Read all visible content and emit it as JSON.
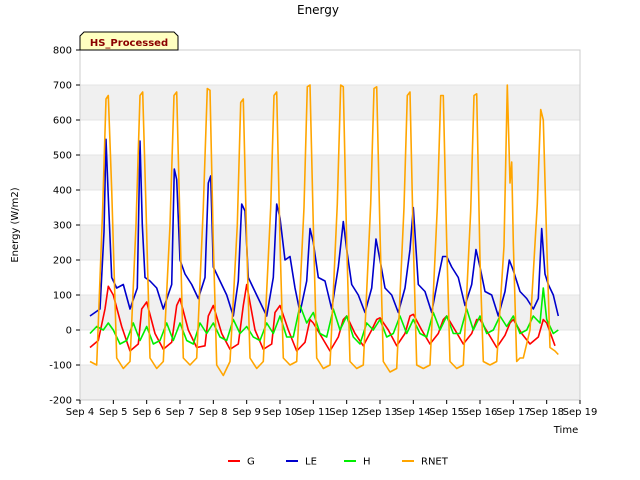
{
  "chart_data": {
    "type": "line",
    "title": "Energy",
    "xlabel": "Time",
    "ylabel": "Energy (W/m2)",
    "badge": "HS_Processed",
    "ylim": [
      -200,
      800
    ],
    "yticks": [
      -200,
      -100,
      0,
      100,
      200,
      300,
      400,
      500,
      600,
      700,
      800
    ],
    "xlim": [
      4,
      19
    ],
    "xticks": [
      4,
      5,
      6,
      7,
      8,
      9,
      10,
      11,
      12,
      13,
      14,
      15,
      16,
      17,
      18,
      19
    ],
    "xtick_labels": [
      "Sep 4",
      "Sep 5",
      "Sep 6",
      "Sep 7",
      "Sep 8",
      "Sep 9",
      "Sep 10",
      "Sep 11",
      "Sep 12",
      "Sep 13",
      "Sep 14",
      "Sep 15",
      "Sep 16",
      "Sep 17",
      "Sep 18",
      "Sep 19"
    ],
    "grid_bands": true,
    "legend_position": "bottom",
    "series": [
      {
        "name": "G",
        "color": "#ff0000",
        "x": [
          4.3,
          4.55,
          4.75,
          4.85,
          5.0,
          5.25,
          5.5,
          5.75,
          5.85,
          6.0,
          6.25,
          6.5,
          6.75,
          6.9,
          7.0,
          7.25,
          7.5,
          7.75,
          7.85,
          8.0,
          8.25,
          8.5,
          8.75,
          8.9,
          9.0,
          9.25,
          9.5,
          9.75,
          9.85,
          10.0,
          10.25,
          10.5,
          10.75,
          10.9,
          11.0,
          11.25,
          11.5,
          11.75,
          11.9,
          12.0,
          12.25,
          12.5,
          12.75,
          12.9,
          13.0,
          13.25,
          13.5,
          13.75,
          13.9,
          14.0,
          14.25,
          14.5,
          14.75,
          14.9,
          15.0,
          15.25,
          15.5,
          15.75,
          15.9,
          16.0,
          16.25,
          16.5,
          16.75,
          16.9,
          17.0,
          17.25,
          17.5,
          17.75,
          17.9,
          18.0,
          18.25
        ],
        "y": [
          -50,
          -30,
          60,
          125,
          100,
          10,
          -60,
          -40,
          60,
          80,
          -10,
          -55,
          -35,
          70,
          90,
          0,
          -50,
          -45,
          40,
          70,
          -10,
          -55,
          -40,
          70,
          130,
          0,
          -55,
          -40,
          50,
          70,
          0,
          -60,
          -35,
          30,
          20,
          -20,
          -60,
          -20,
          30,
          40,
          -10,
          -45,
          0,
          30,
          35,
          0,
          -45,
          -10,
          40,
          45,
          0,
          -40,
          -10,
          30,
          40,
          0,
          -40,
          -10,
          30,
          30,
          -10,
          -50,
          -15,
          20,
          30,
          -10,
          -40,
          -20,
          30,
          20,
          -45
        ]
      },
      {
        "name": "LE",
        "color": "#0000cc",
        "x": [
          4.3,
          4.6,
          4.72,
          4.78,
          4.85,
          4.95,
          5.1,
          5.3,
          5.5,
          5.72,
          5.8,
          5.87,
          5.95,
          6.1,
          6.3,
          6.5,
          6.75,
          6.83,
          6.9,
          7.0,
          7.15,
          7.35,
          7.55,
          7.75,
          7.85,
          7.92,
          8.0,
          8.2,
          8.4,
          8.6,
          8.75,
          8.85,
          8.95,
          9.05,
          9.2,
          9.4,
          9.6,
          9.8,
          9.9,
          10.0,
          10.15,
          10.3,
          10.45,
          10.6,
          10.8,
          10.9,
          11.0,
          11.15,
          11.35,
          11.55,
          11.75,
          11.9,
          12.0,
          12.15,
          12.35,
          12.55,
          12.75,
          12.88,
          13.0,
          13.15,
          13.35,
          13.55,
          13.75,
          13.9,
          14.0,
          14.15,
          14.35,
          14.55,
          14.75,
          14.88,
          15.0,
          15.15,
          15.35,
          15.55,
          15.75,
          15.88,
          16.0,
          16.15,
          16.35,
          16.55,
          16.75,
          16.88,
          17.0,
          17.2,
          17.4,
          17.6,
          17.75,
          17.85,
          17.95,
          18.05,
          18.2,
          18.35
        ],
        "y": [
          40,
          60,
          280,
          545,
          380,
          150,
          120,
          130,
          60,
          120,
          540,
          300,
          150,
          140,
          120,
          60,
          130,
          460,
          430,
          200,
          160,
          130,
          90,
          150,
          420,
          440,
          180,
          140,
          100,
          40,
          140,
          360,
          340,
          150,
          120,
          80,
          40,
          150,
          360,
          320,
          200,
          210,
          120,
          50,
          140,
          290,
          250,
          150,
          140,
          60,
          180,
          310,
          230,
          130,
          100,
          50,
          120,
          260,
          200,
          120,
          100,
          50,
          120,
          230,
          350,
          130,
          110,
          50,
          150,
          210,
          210,
          180,
          150,
          70,
          130,
          230,
          180,
          110,
          100,
          40,
          110,
          200,
          170,
          110,
          90,
          60,
          90,
          290,
          160,
          130,
          100,
          40
        ]
      },
      {
        "name": "H",
        "color": "#00ee00",
        "x": [
          4.3,
          4.5,
          4.7,
          4.85,
          5.0,
          5.2,
          5.4,
          5.6,
          5.8,
          6.0,
          6.2,
          6.4,
          6.6,
          6.8,
          7.0,
          7.2,
          7.4,
          7.6,
          7.8,
          8.0,
          8.2,
          8.4,
          8.6,
          8.8,
          9.0,
          9.2,
          9.4,
          9.6,
          9.8,
          10.0,
          10.2,
          10.4,
          10.6,
          10.8,
          11.0,
          11.2,
          11.4,
          11.6,
          11.8,
          12.0,
          12.2,
          12.4,
          12.6,
          12.8,
          13.0,
          13.2,
          13.4,
          13.6,
          13.8,
          14.0,
          14.2,
          14.4,
          14.6,
          14.8,
          15.0,
          15.2,
          15.4,
          15.6,
          15.8,
          16.0,
          16.2,
          16.4,
          16.6,
          16.8,
          17.0,
          17.2,
          17.4,
          17.6,
          17.8,
          17.9,
          18.0,
          18.2,
          18.35
        ],
        "y": [
          -10,
          10,
          0,
          20,
          0,
          -40,
          -30,
          20,
          -30,
          10,
          -40,
          -30,
          20,
          -30,
          20,
          -30,
          -40,
          20,
          -10,
          20,
          -20,
          -30,
          30,
          -10,
          10,
          -20,
          -30,
          20,
          -10,
          40,
          -20,
          -20,
          70,
          20,
          50,
          -10,
          -20,
          60,
          0,
          40,
          -20,
          -40,
          20,
          0,
          30,
          -20,
          -10,
          40,
          -10,
          30,
          -10,
          -20,
          50,
          0,
          40,
          -10,
          -10,
          60,
          0,
          40,
          -10,
          0,
          40,
          10,
          40,
          -10,
          0,
          40,
          20,
          120,
          30,
          -10,
          0
        ]
      },
      {
        "name": "RNET",
        "color": "#ffa500",
        "x": [
          4.3,
          4.5,
          4.68,
          4.78,
          4.85,
          4.95,
          5.1,
          5.3,
          5.5,
          5.68,
          5.8,
          5.88,
          5.98,
          6.1,
          6.3,
          6.5,
          6.7,
          6.82,
          6.9,
          7.0,
          7.1,
          7.3,
          7.5,
          7.7,
          7.82,
          7.9,
          8.0,
          8.1,
          8.3,
          8.5,
          8.72,
          8.82,
          8.9,
          9.0,
          9.1,
          9.3,
          9.5,
          9.72,
          9.82,
          9.9,
          10.0,
          10.1,
          10.3,
          10.5,
          10.72,
          10.82,
          10.9,
          11.0,
          11.1,
          11.3,
          11.5,
          11.72,
          11.82,
          11.9,
          12.0,
          12.1,
          12.3,
          12.5,
          12.72,
          12.82,
          12.9,
          13.0,
          13.1,
          13.3,
          13.5,
          13.72,
          13.82,
          13.9,
          14.0,
          14.1,
          14.3,
          14.5,
          14.72,
          14.82,
          14.9,
          15.0,
          15.1,
          15.3,
          15.5,
          15.72,
          15.82,
          15.9,
          16.0,
          16.1,
          16.3,
          16.5,
          16.72,
          16.82,
          16.9,
          16.95,
          17.0,
          17.1,
          17.2,
          17.3,
          17.5,
          17.72,
          17.82,
          17.9,
          18.0,
          18.1,
          18.25,
          18.35
        ],
        "y": [
          -90,
          -100,
          350,
          660,
          670,
          400,
          -80,
          -110,
          -90,
          300,
          670,
          680,
          350,
          -80,
          -110,
          -90,
          300,
          670,
          680,
          300,
          -80,
          -100,
          -80,
          350,
          690,
          685,
          250,
          -100,
          -130,
          -90,
          300,
          650,
          660,
          250,
          -80,
          -110,
          -90,
          350,
          670,
          680,
          250,
          -80,
          -100,
          -90,
          350,
          695,
          700,
          300,
          -80,
          -110,
          -100,
          360,
          700,
          695,
          250,
          -90,
          -110,
          -100,
          360,
          690,
          695,
          280,
          -90,
          -120,
          -110,
          350,
          670,
          680,
          250,
          -100,
          -110,
          -100,
          350,
          670,
          670,
          250,
          -90,
          -110,
          -100,
          340,
          670,
          675,
          200,
          -90,
          -100,
          -90,
          240,
          700,
          420,
          480,
          250,
          -90,
          -80,
          -80,
          0,
          360,
          630,
          600,
          250,
          -50,
          -60,
          -70
        ]
      }
    ]
  }
}
